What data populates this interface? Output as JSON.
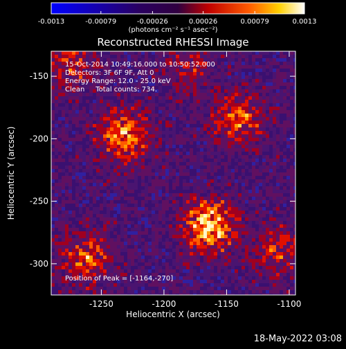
{
  "title": "Reconstructed RHESSI Image",
  "colorbar": {
    "tick_labels": [
      "-0.0013",
      "-0.00079",
      "-0.00026",
      "0.00026",
      "0.00079",
      "0.0013"
    ],
    "units_label": "(photons cm⁻² s⁻¹ asec⁻²)",
    "range": [
      -0.0013,
      0.0013
    ]
  },
  "annotations": {
    "line1": "15-Oct-2014 10:49:16.000 to 10:50:52.000",
    "line2": "Detectors: 3F 6F 9F, Att 0",
    "line3": "Energy Range: 12.0 - 25.0 keV",
    "line4": "Clean     Total counts: 734.",
    "peak": "Position of Peak = [-1164,-270]"
  },
  "axes": {
    "xlabel": "Heliocentric X (arcsec)",
    "ylabel": "Heliocentric Y (arcsec)",
    "x_ticks": [
      "-1250",
      "-1200",
      "-1150",
      "-1100"
    ],
    "y_ticks": [
      "-150",
      "-200",
      "-250",
      "-300"
    ],
    "xlim": [
      -1290,
      -1095
    ],
    "ylim": [
      -325,
      -130
    ]
  },
  "footer_timestamp": "18-May-2022 03:08",
  "chart_data": {
    "type": "heatmap",
    "title": "Reconstructed RHESSI Image",
    "xlabel": "Heliocentric X (arcsec)",
    "ylabel": "Heliocentric Y (arcsec)",
    "xlim": [
      -1290,
      -1095
    ],
    "ylim": [
      -325,
      -130
    ],
    "colorscale_range": [
      -0.0013,
      0.0013
    ],
    "peak": [
      -1164,
      -270
    ],
    "bright_sources": [
      {
        "x": -1164,
        "y": -270,
        "strength": 1.0
      },
      {
        "x": -1232,
        "y": -198,
        "strength": 0.75
      },
      {
        "x": -1140,
        "y": -185,
        "strength": 0.6
      },
      {
        "x": -1262,
        "y": -295,
        "strength": 0.6
      },
      {
        "x": -1275,
        "y": -140,
        "strength": 0.45
      },
      {
        "x": -1110,
        "y": -290,
        "strength": 0.45
      },
      {
        "x": -1180,
        "y": -145,
        "strength": 0.35
      }
    ]
  }
}
